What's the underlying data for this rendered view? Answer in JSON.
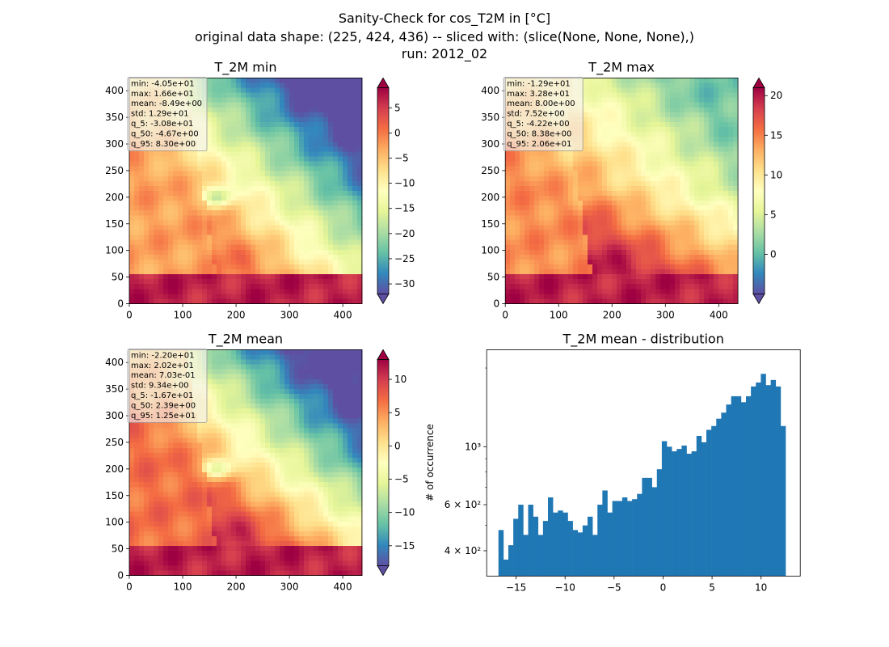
{
  "figure": {
    "title_lines": [
      "Sanity-Check for cos_T2M in [°C]",
      "original data shape: (225, 424, 436) -- sliced with: (slice(None, None, None),)",
      "run: 2012_02"
    ]
  },
  "chart_data": [
    {
      "type": "heatmap",
      "title": "T_2M min",
      "xlim": [
        0,
        436
      ],
      "ylim": [
        0,
        424
      ],
      "xticks": [
        "0",
        "100",
        "200",
        "300",
        "400"
      ],
      "yticks": [
        "0",
        "50",
        "100",
        "150",
        "200",
        "250",
        "300",
        "350",
        "400"
      ],
      "colormap": "Spectral_r",
      "colorbar": {
        "range": [
          -32,
          9
        ],
        "ticks": [
          "5",
          "0",
          "−5",
          "−10",
          "−15",
          "−20",
          "−25",
          "−30"
        ],
        "tick_values": [
          5,
          0,
          -5,
          -10,
          -15,
          -20,
          -25,
          -30
        ]
      },
      "stats": [
        "min: -4.05e+01",
        "max: 1.66e+01",
        "mean: -8.49e+00",
        "std: 1.29e+01",
        "q_5: -3.08e+01",
        "q_50: -4.67e+00",
        "q_95: 8.30e+00"
      ]
    },
    {
      "type": "heatmap",
      "title": "T_2M max",
      "xlim": [
        0,
        436
      ],
      "ylim": [
        0,
        424
      ],
      "xticks": [
        "0",
        "100",
        "200",
        "300",
        "400"
      ],
      "yticks": [
        "0",
        "50",
        "100",
        "150",
        "200",
        "250",
        "300",
        "350",
        "400"
      ],
      "colormap": "Spectral_r",
      "colorbar": {
        "range": [
          -5,
          21
        ],
        "ticks": [
          "20",
          "15",
          "10",
          "5",
          "0"
        ],
        "tick_values": [
          20,
          15,
          10,
          5,
          0
        ]
      },
      "stats": [
        "min: -1.29e+01",
        "max: 3.28e+01",
        "mean: 8.00e+00",
        "std: 7.52e+00",
        "q_5: -4.22e+00",
        "q_50: 8.38e+00",
        "q_95: 2.06e+01"
      ]
    },
    {
      "type": "heatmap",
      "title": "T_2M mean",
      "xlim": [
        0,
        436
      ],
      "ylim": [
        0,
        424
      ],
      "xticks": [
        "0",
        "100",
        "200",
        "300",
        "400"
      ],
      "yticks": [
        "0",
        "50",
        "100",
        "150",
        "200",
        "250",
        "300",
        "350",
        "400"
      ],
      "colormap": "Spectral_r",
      "colorbar": {
        "range": [
          -18,
          13
        ],
        "ticks": [
          "10",
          "5",
          "0",
          "−5",
          "−10",
          "−15"
        ],
        "tick_values": [
          10,
          5,
          0,
          -5,
          -10,
          -15
        ]
      },
      "stats": [
        "min: -2.20e+01",
        "max: 2.02e+01",
        "mean: 7.03e-01",
        "std: 9.34e+00",
        "q_5: -1.67e+01",
        "q_50: 2.39e+00",
        "q_95: 1.25e+01"
      ]
    },
    {
      "type": "bar",
      "title": "T_2M mean - distribution",
      "ylabel": "# of occurrence",
      "xlabel": "",
      "yscale": "log",
      "xlim": [
        -18,
        14
      ],
      "ylim": [
        320,
        2350
      ],
      "xticks": [
        "−15",
        "−10",
        "−5",
        "0",
        "5",
        "10"
      ],
      "xtick_values": [
        -15,
        -10,
        -5,
        0,
        5,
        10
      ],
      "yticks": [
        {
          "value": 400,
          "label": "4 × 10²"
        },
        {
          "value": 600,
          "label": "6 × 10²"
        },
        {
          "value": 1000,
          "label": "10³"
        }
      ],
      "color": "#1f77b4",
      "bin_range": [
        -16.8,
        12.5
      ],
      "x": [
        -16.5,
        -16,
        -15.5,
        -15,
        -14.5,
        -14,
        -13.5,
        -13,
        -12.5,
        -12,
        -11.5,
        -11,
        -10.5,
        -10,
        -9.5,
        -9,
        -8.5,
        -8,
        -7.5,
        -7,
        -6.5,
        -6,
        -5.5,
        -5,
        -4.5,
        -4,
        -3.5,
        -3,
        -2.5,
        -2,
        -1.5,
        -1,
        -0.5,
        0,
        0.5,
        1,
        1.5,
        2,
        2.5,
        3,
        3.5,
        4,
        4.5,
        5,
        5.5,
        6,
        6.5,
        7,
        7.5,
        8,
        8.5,
        9,
        9.5,
        10,
        10.5,
        11,
        11.5,
        12
      ],
      "values": [
        480,
        370,
        420,
        530,
        600,
        460,
        600,
        540,
        460,
        520,
        640,
        560,
        570,
        560,
        520,
        480,
        470,
        500,
        540,
        460,
        600,
        680,
        560,
        620,
        620,
        640,
        620,
        630,
        660,
        760,
        760,
        700,
        820,
        1050,
        1000,
        960,
        980,
        1010,
        940,
        960,
        1100,
        1040,
        1160,
        1200,
        1280,
        1350,
        1450,
        1560,
        1560,
        1480,
        1560,
        1700,
        1760,
        1900,
        1720,
        1800,
        1700,
        1200
      ]
    }
  ]
}
